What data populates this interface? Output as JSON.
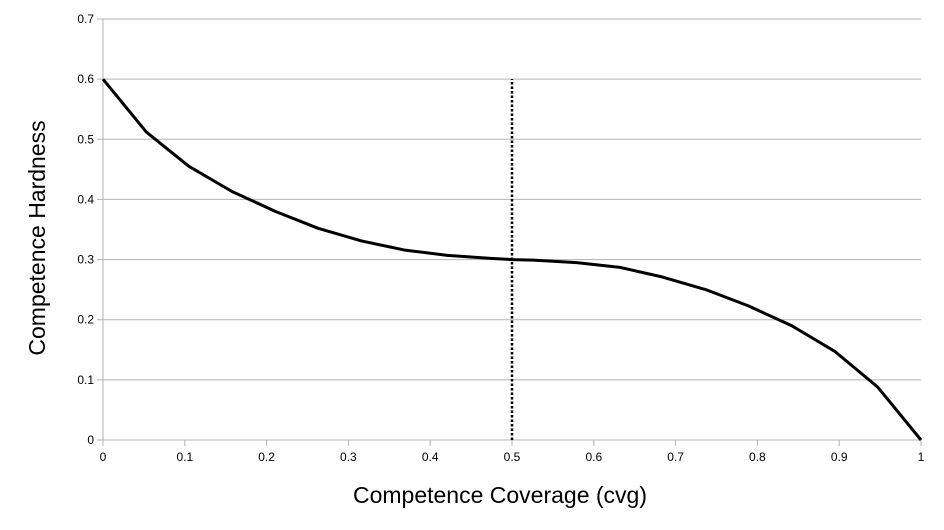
{
  "chart_data": {
    "type": "line",
    "title": "",
    "xlabel": "Competence Coverage (cvg)",
    "ylabel": "Competence Hardness",
    "xlim": [
      0,
      1
    ],
    "ylim": [
      0,
      0.7
    ],
    "x_ticks": [
      "0",
      "0.1",
      "0.2",
      "0.3",
      "0.4",
      "0.5",
      "0.6",
      "0.7",
      "0.8",
      "0.9",
      "1"
    ],
    "y_ticks": [
      "0",
      "0.1",
      "0.2",
      "0.3",
      "0.4",
      "0.5",
      "0.6",
      "0.7"
    ],
    "grid": {
      "horizontal": true,
      "vertical": false
    },
    "legend": "none",
    "series": [
      {
        "color": "#000000",
        "style": "solid",
        "x": [
          0,
          0.053,
          0.105,
          0.158,
          0.211,
          0.263,
          0.316,
          0.368,
          0.421,
          0.474,
          0.5,
          0.526,
          0.579,
          0.632,
          0.684,
          0.737,
          0.789,
          0.842,
          0.895,
          0.947,
          1
        ],
        "y": [
          0.6,
          0.512,
          0.455,
          0.413,
          0.38,
          0.352,
          0.331,
          0.316,
          0.307,
          0.302,
          0.3,
          0.299,
          0.295,
          0.287,
          0.271,
          0.25,
          0.223,
          0.19,
          0.147,
          0.088,
          0
        ]
      }
    ],
    "reference_lines": [
      {
        "orientation": "vertical",
        "x": 0.5,
        "y_from": 0,
        "y_to": 0.6,
        "style": "dotted",
        "color": "#000000"
      }
    ]
  }
}
